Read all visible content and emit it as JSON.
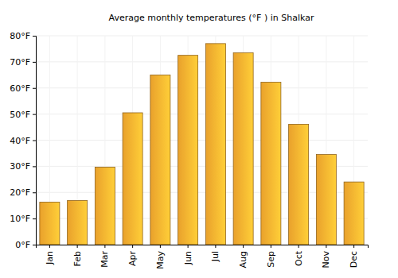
{
  "chart_data": {
    "type": "bar",
    "title": "Average monthly temperatures (°F ) in Shalkar",
    "categories": [
      "Jan",
      "Feb",
      "Mar",
      "Apr",
      "May",
      "Jun",
      "Jul",
      "Aug",
      "Sep",
      "Oct",
      "Nov",
      "Dec"
    ],
    "values": [
      16.3,
      16.9,
      29.7,
      50.5,
      65.0,
      72.5,
      77.0,
      73.5,
      62.2,
      46.1,
      34.5,
      24.0
    ],
    "color": "#ffb030",
    "ylim": [
      0,
      80
    ],
    "yticks": [
      {
        "value": 0,
        "label": "0°F"
      },
      {
        "value": 10,
        "label": "10°F"
      },
      {
        "value": 20,
        "label": "20°F"
      },
      {
        "value": 30,
        "label": "30°F"
      },
      {
        "value": 40,
        "label": "40°F"
      },
      {
        "value": 50,
        "label": "50°F"
      },
      {
        "value": 60,
        "label": "60°F"
      },
      {
        "value": 70,
        "label": "70°F"
      },
      {
        "value": 80,
        "label": "80°F"
      }
    ],
    "grid": true
  }
}
